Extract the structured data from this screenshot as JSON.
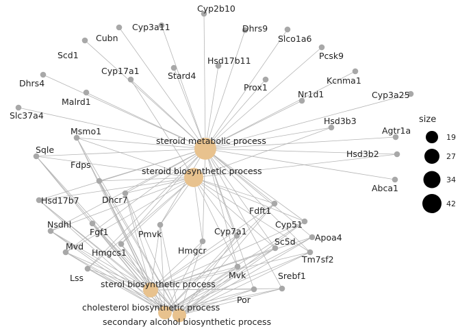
{
  "colors": {
    "term": "#e8c28e",
    "gene": "#a8a8a8",
    "edge": "#b4b4b4"
  },
  "terms": [
    {
      "id": "T1",
      "label": "steroid metabolic process"
    },
    {
      "id": "T2",
      "label": "steroid biosynthetic process"
    },
    {
      "id": "T3",
      "label": "sterol biosynthetic process"
    },
    {
      "id": "T4",
      "label": "cholesterol biosynthetic process"
    },
    {
      "id": "T5",
      "label": "secondary alcohol biosynthetic process"
    }
  ],
  "genes": [
    {
      "label": "Cyp2b10",
      "terms": [
        "T1"
      ]
    },
    {
      "label": "Dhrs9",
      "terms": [
        "T1"
      ]
    },
    {
      "label": "Cubn",
      "terms": [
        "T1"
      ]
    },
    {
      "label": "Cyp3a11",
      "terms": [
        "T1"
      ]
    },
    {
      "label": "Slco1a6",
      "terms": [
        "T1"
      ]
    },
    {
      "label": "Scd1",
      "terms": [
        "T1"
      ]
    },
    {
      "label": "Pcsk9",
      "terms": [
        "T1"
      ]
    },
    {
      "label": "Hsd17b11",
      "terms": [
        "T1"
      ]
    },
    {
      "label": "Cyp17a1",
      "terms": [
        "T1",
        "T2"
      ]
    },
    {
      "label": "Stard4",
      "terms": [
        "T1"
      ]
    },
    {
      "label": "Kcnma1",
      "terms": [
        "T1"
      ]
    },
    {
      "label": "Dhrs4",
      "terms": [
        "T1"
      ]
    },
    {
      "label": "Prox1",
      "terms": [
        "T1"
      ]
    },
    {
      "label": "Cyp3a25",
      "terms": [
        "T1"
      ]
    },
    {
      "label": "Nr1d1",
      "terms": [
        "T1"
      ]
    },
    {
      "label": "Malrd1",
      "terms": [
        "T1"
      ]
    },
    {
      "label": "Slc37a4",
      "terms": [
        "T1"
      ]
    },
    {
      "label": "Hsd3b3",
      "terms": [
        "T1",
        "T2"
      ]
    },
    {
      "label": "Msmo1",
      "terms": [
        "T1",
        "T2",
        "T3",
        "T4",
        "T5"
      ]
    },
    {
      "label": "Agtr1a",
      "terms": [
        "T1"
      ]
    },
    {
      "label": "Sqle",
      "terms": [
        "T1",
        "T2",
        "T3",
        "T4",
        "T5"
      ]
    },
    {
      "label": "Hsd3b2",
      "terms": [
        "T1",
        "T2"
      ]
    },
    {
      "label": "Abca1",
      "terms": [
        "T1"
      ]
    },
    {
      "label": "Fdps",
      "terms": [
        "T1",
        "T2",
        "T3",
        "T4",
        "T5"
      ]
    },
    {
      "label": "Hsd17b7",
      "terms": [
        "T1",
        "T2",
        "T3",
        "T4",
        "T5"
      ]
    },
    {
      "label": "Dhcr7",
      "terms": [
        "T1",
        "T2",
        "T3",
        "T4",
        "T5"
      ]
    },
    {
      "label": "Fdft1",
      "terms": [
        "T1",
        "T2",
        "T3",
        "T4",
        "T5"
      ]
    },
    {
      "label": "Nsdhl",
      "terms": [
        "T1",
        "T2",
        "T3",
        "T4",
        "T5"
      ]
    },
    {
      "label": "Fgf1",
      "terms": [
        "T3",
        "T4",
        "T5"
      ]
    },
    {
      "label": "Cyp51",
      "terms": [
        "T1",
        "T2",
        "T3",
        "T4",
        "T5"
      ]
    },
    {
      "label": "Pmvk",
      "terms": [
        "T1",
        "T2",
        "T3",
        "T4",
        "T5"
      ]
    },
    {
      "label": "Cyp7a1",
      "terms": [
        "T1",
        "T2",
        "T3",
        "T4",
        "T5"
      ]
    },
    {
      "label": "Apoa4",
      "terms": [
        "T1",
        "T3",
        "T4",
        "T5"
      ]
    },
    {
      "label": "Mvd",
      "terms": [
        "T1",
        "T2",
        "T3",
        "T4",
        "T5"
      ]
    },
    {
      "label": "Hmgcs1",
      "terms": [
        "T1",
        "T2",
        "T3",
        "T4",
        "T5"
      ]
    },
    {
      "label": "Hmgcr",
      "terms": [
        "T1",
        "T2",
        "T3",
        "T4",
        "T5"
      ]
    },
    {
      "label": "Sc5d",
      "terms": [
        "T1",
        "T2",
        "T3",
        "T4",
        "T5"
      ]
    },
    {
      "label": "Tm7sf2",
      "terms": [
        "T1",
        "T2",
        "T3",
        "T4",
        "T5"
      ]
    },
    {
      "label": "Lss",
      "terms": [
        "T1",
        "T2",
        "T3",
        "T4",
        "T5"
      ]
    },
    {
      "label": "Mvk",
      "terms": [
        "T1",
        "T2",
        "T3",
        "T4",
        "T5"
      ]
    },
    {
      "label": "Srebf1",
      "terms": [
        "T1",
        "T3",
        "T4",
        "T5"
      ]
    },
    {
      "label": "Por",
      "terms": [
        "T1",
        "T3",
        "T4",
        "T5"
      ]
    }
  ],
  "legend": {
    "title": "size",
    "items": [
      "19",
      "27",
      "34",
      "42"
    ]
  }
}
